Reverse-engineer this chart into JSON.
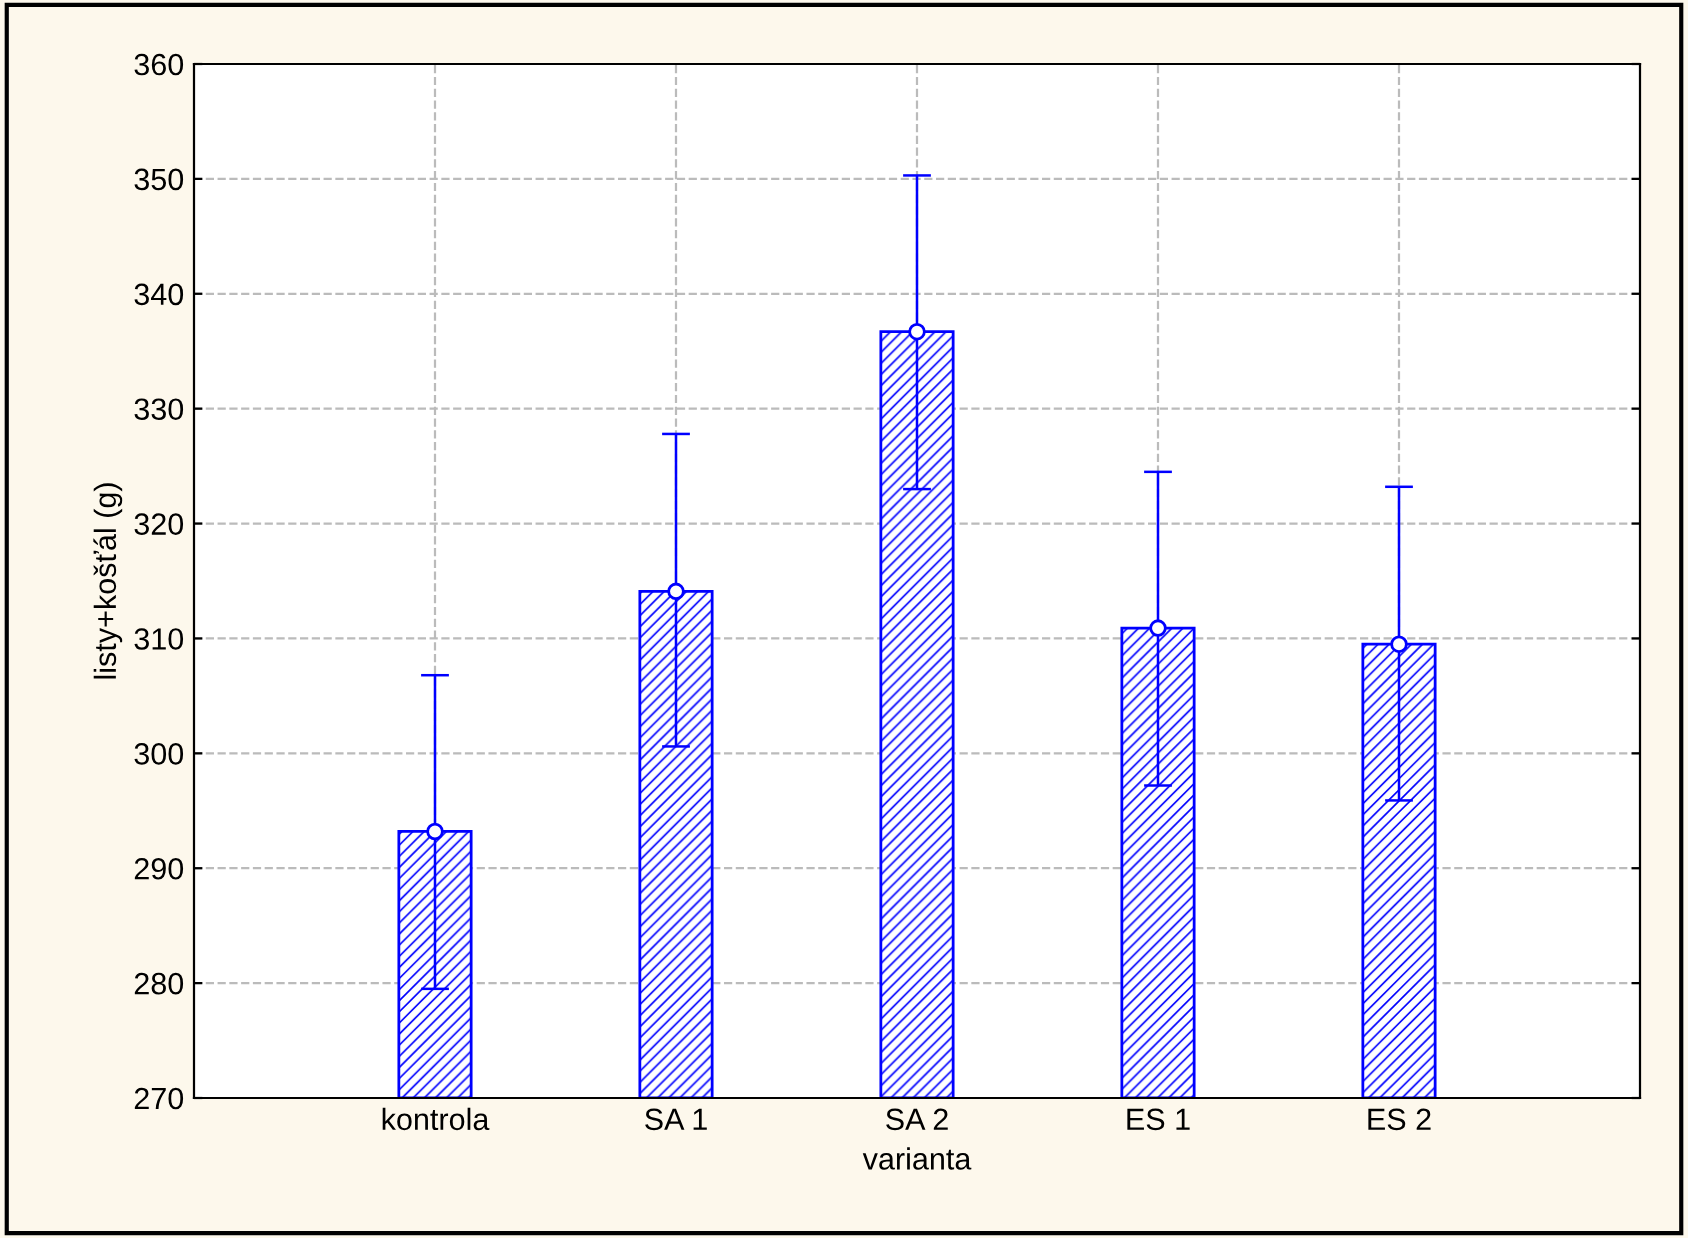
{
  "chart_data": {
    "type": "bar",
    "xlabel": "varianta",
    "ylabel": "listy+košťál (g)",
    "categories": [
      "kontrola",
      "SA 1",
      "SA 2",
      "ES 1",
      "ES 2"
    ],
    "series": [
      {
        "color": "#0000ff",
        "values": [
          293.2,
          314.1,
          336.7,
          310.9,
          309.5
        ],
        "errors": [
          [
            279.5,
            306.8
          ],
          [
            300.6,
            327.8
          ],
          [
            323.0,
            350.3
          ],
          [
            297.2,
            324.5
          ],
          [
            295.9,
            323.2
          ]
        ]
      },
      {
        "type": "scatter",
        "color": "#0000ff",
        "marker": "circle",
        "x": [
          "kontrola",
          "SA 1",
          "SA 2",
          "ES 1",
          "ES 2"
        ],
        "values": [
          293.2,
          314.1,
          336.7,
          310.9,
          309.5
        ]
      }
    ],
    "ylim": [
      270,
      360
    ],
    "yticks": [
      270,
      280,
      290,
      300,
      310,
      320,
      330,
      340,
      350,
      360
    ],
    "grid": true,
    "legend": false
  }
}
